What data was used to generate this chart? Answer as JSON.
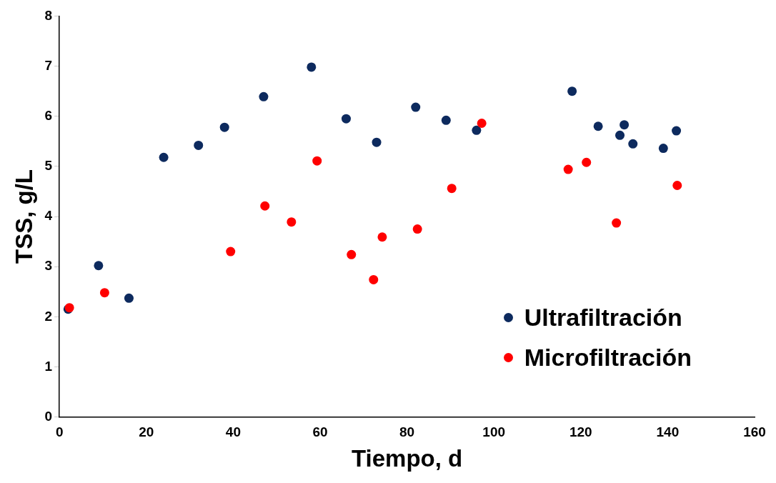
{
  "chart_data": {
    "type": "scatter",
    "xlabel": "Tiempo, d",
    "ylabel": "TSS, g/L",
    "xlim": [
      0,
      160
    ],
    "xticks": [
      0,
      20,
      40,
      60,
      80,
      100,
      120,
      140,
      160
    ],
    "ylim": [
      0,
      8
    ],
    "yticks": [
      0,
      1,
      2,
      3,
      4,
      5,
      6,
      7,
      8
    ],
    "grid": false,
    "legend": "bottom right",
    "marker": "circle",
    "series": [
      {
        "name": "Ultrafiltración",
        "color": "#0d2a5e",
        "x": [
          2,
          9,
          16,
          24,
          32,
          38,
          47,
          58,
          66,
          73,
          82,
          89,
          96,
          118,
          124,
          129,
          130,
          132,
          139,
          142
        ],
        "values": [
          2.15,
          3.02,
          2.37,
          5.18,
          5.42,
          5.78,
          6.39,
          6.98,
          5.95,
          5.48,
          6.18,
          5.92,
          5.72,
          6.5,
          5.8,
          5.62,
          5.83,
          5.45,
          5.36,
          5.71
        ]
      },
      {
        "name": "Microfiltración",
        "color": "#ff0000",
        "x": [
          2.3,
          10.4,
          39.4,
          47.3,
          53.4,
          59.3,
          67.2,
          72.3,
          74.3,
          82.4,
          90.3,
          97.2,
          117.1,
          121.3,
          128.2,
          142.2
        ],
        "values": [
          2.18,
          2.48,
          3.3,
          4.21,
          3.89,
          5.11,
          3.24,
          2.74,
          3.59,
          3.75,
          4.56,
          5.86,
          4.94,
          5.08,
          3.87,
          4.62
        ]
      }
    ]
  }
}
